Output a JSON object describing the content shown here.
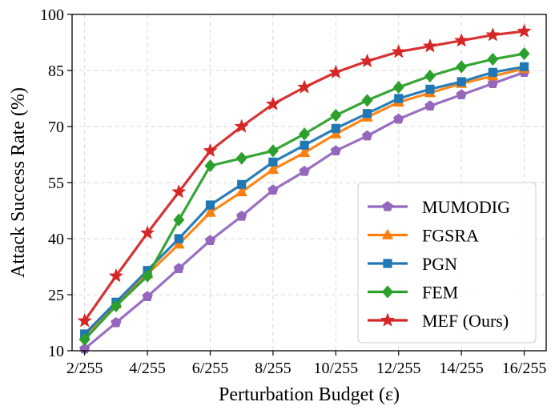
{
  "chart_data": {
    "type": "line",
    "title": "",
    "xlabel": "Perturbation Budget (ε)",
    "ylabel": "Attack Success Rate (%)",
    "x": [
      2,
      3,
      4,
      5,
      6,
      7,
      8,
      9,
      10,
      11,
      12,
      13,
      14,
      15,
      16
    ],
    "xlim": [
      1.6,
      16.7
    ],
    "ylim": [
      10,
      100
    ],
    "xticks": [
      2,
      4,
      6,
      8,
      10,
      12,
      14,
      16
    ],
    "xtick_labels": [
      "2/255",
      "4/255",
      "6/255",
      "8/255",
      "10/255",
      "12/255",
      "14/255",
      "16/255"
    ],
    "yticks": [
      10,
      25,
      40,
      55,
      70,
      85,
      100
    ],
    "ytick_labels": [
      "10",
      "25",
      "40",
      "55",
      "70",
      "85",
      "100"
    ],
    "grid": true,
    "legend_position": "bottom-right",
    "series": [
      {
        "name": "MUMODIG",
        "color": "#9467bd",
        "marker": "pentagon",
        "values": [
          10.5,
          17.5,
          24.5,
          32,
          39.5,
          46,
          53,
          58,
          63.5,
          67.5,
          72,
          75.5,
          78.5,
          81.5,
          84.5
        ]
      },
      {
        "name": "FGSRA",
        "color": "#ff7f0e",
        "marker": "triangle",
        "values": [
          14,
          22.5,
          30.5,
          38.5,
          47,
          52.5,
          58.5,
          63,
          68,
          72.5,
          76.5,
          79,
          81.5,
          83.5,
          85.5
        ]
      },
      {
        "name": "PGN",
        "color": "#1f77b4",
        "marker": "square",
        "values": [
          14.5,
          23,
          31.5,
          40,
          49,
          54.5,
          60.5,
          65,
          69.5,
          73.5,
          77.5,
          80,
          82,
          84.5,
          86
        ]
      },
      {
        "name": "FEM",
        "color": "#2ca02c",
        "marker": "diamond",
        "values": [
          13,
          22,
          30,
          45,
          59.5,
          61.5,
          63.5,
          68,
          73,
          77,
          80.5,
          83.5,
          86,
          88,
          89.5
        ]
      },
      {
        "name": "MEF (Ours)",
        "color": "#d62728",
        "marker": "star",
        "values": [
          18,
          30,
          41.5,
          52.5,
          63.5,
          70,
          76,
          80.5,
          84.5,
          87.5,
          90,
          91.5,
          93,
          94.5,
          95.5
        ]
      }
    ]
  }
}
